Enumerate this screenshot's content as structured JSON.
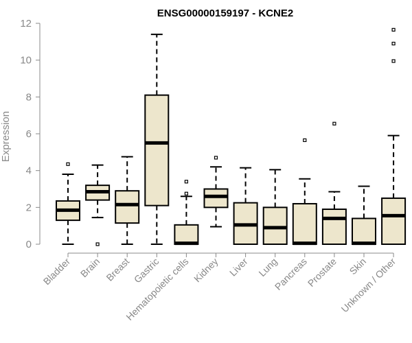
{
  "chart_data": {
    "type": "boxplot",
    "title": "ENSG00000159197 - KCNE2",
    "xlabel": "",
    "ylabel": "Expression",
    "ylim": [
      0,
      12
    ],
    "yticks": [
      0,
      2,
      4,
      6,
      8,
      10,
      12
    ],
    "box_color": "#ede6cc",
    "outline_color": "#000000",
    "categories": [
      "Bladder",
      "Brain",
      "Breast",
      "Gastric",
      "Hematopoietic cells",
      "Kidney",
      "Liver",
      "Lung",
      "Pancreas",
      "Prostate",
      "Skin",
      "Unknown / Other"
    ],
    "boxes": [
      {
        "name": "Bladder",
        "whisker_low": 0,
        "q1": 1.3,
        "median": 1.85,
        "q3": 2.35,
        "whisker_high": 3.8,
        "outliers": [
          4.35
        ]
      },
      {
        "name": "Brain",
        "whisker_low": 1.45,
        "q1": 2.4,
        "median": 2.85,
        "q3": 3.2,
        "whisker_high": 4.3,
        "outliers": [
          0
        ]
      },
      {
        "name": "Breast",
        "whisker_low": 0,
        "q1": 1.15,
        "median": 2.15,
        "q3": 2.9,
        "whisker_high": 4.75,
        "outliers": []
      },
      {
        "name": "Gastric",
        "whisker_low": 0,
        "q1": 2.1,
        "median": 5.5,
        "q3": 8.1,
        "whisker_high": 11.4,
        "outliers": []
      },
      {
        "name": "Hematopoietic cells",
        "whisker_low": 0,
        "q1": 0,
        "median": 0.05,
        "q3": 1.05,
        "whisker_high": 2.6,
        "outliers": [
          2.75,
          3.4
        ]
      },
      {
        "name": "Kidney",
        "whisker_low": 0.95,
        "q1": 2.0,
        "median": 2.6,
        "q3": 3.0,
        "whisker_high": 4.2,
        "outliers": [
          4.7
        ]
      },
      {
        "name": "Liver",
        "whisker_low": 0,
        "q1": 0,
        "median": 1.05,
        "q3": 2.25,
        "whisker_high": 4.15,
        "outliers": []
      },
      {
        "name": "Lung",
        "whisker_low": 0,
        "q1": 0,
        "median": 0.9,
        "q3": 2.0,
        "whisker_high": 4.05,
        "outliers": []
      },
      {
        "name": "Pancreas",
        "whisker_low": 0,
        "q1": 0,
        "median": 0.05,
        "q3": 2.2,
        "whisker_high": 3.55,
        "outliers": [
          5.65
        ]
      },
      {
        "name": "Prostate",
        "whisker_low": 0,
        "q1": 0,
        "median": 1.4,
        "q3": 1.9,
        "whisker_high": 2.85,
        "outliers": [
          6.55
        ]
      },
      {
        "name": "Skin",
        "whisker_low": 0,
        "q1": 0,
        "median": 0.05,
        "q3": 1.4,
        "whisker_high": 3.15,
        "outliers": []
      },
      {
        "name": "Unknown / Other",
        "whisker_low": 0,
        "q1": 0,
        "median": 1.55,
        "q3": 2.5,
        "whisker_high": 5.9,
        "outliers": [
          9.95,
          10.9,
          11.65
        ]
      }
    ]
  }
}
